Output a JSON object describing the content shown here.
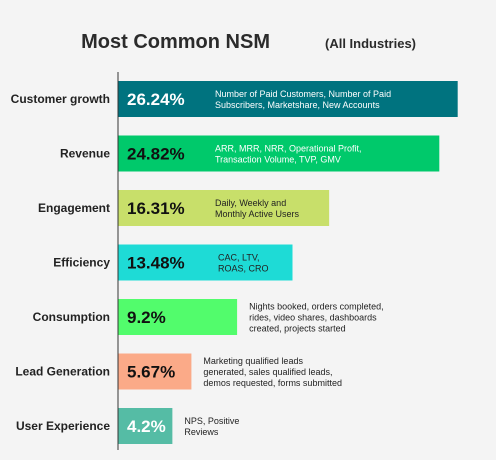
{
  "chart_data": {
    "type": "bar",
    "orientation": "horizontal",
    "title": "Most Common NSM",
    "subtitle": "(All Industries)",
    "xlabel": "",
    "ylabel": "",
    "xlim": [
      0,
      27.5
    ],
    "grid": false,
    "legend": "none",
    "categories": [
      "Customer growth",
      "Revenue",
      "Engagement",
      "Efficiency",
      "Consumption",
      "Lead Generation",
      "User Experience"
    ],
    "values": [
      26.24,
      24.82,
      16.31,
      13.48,
      9.2,
      5.67,
      4.2
    ],
    "value_labels": [
      "26.24%",
      "24.82%",
      "16.31%",
      "13.48%",
      "9.2%",
      "5.67%",
      "4.2%"
    ],
    "colors": [
      "#00737f",
      "#00c96b",
      "#c8df6a",
      "#1edbd6",
      "#52fc6c",
      "#fbaa88",
      "#55bca5"
    ],
    "value_label_colors": [
      "#ffffff",
      "#111111",
      "#111111",
      "#111111",
      "#111111",
      "#111111",
      "#ffffff"
    ],
    "annotations": [
      [
        "Number of Paid Customers, Number of Paid",
        "Subscribers, Marketshare, New Accounts"
      ],
      [
        "ARR, MRR, NRR,  Operational Profit,",
        "Transaction Volume, TVP, GMV"
      ],
      [
        "Daily, Weekly and",
        "Monthly Active Users"
      ],
      [
        "CAC, LTV,",
        "ROAS, CRO"
      ],
      [
        "Nights booked, orders completed,",
        "rides, video shares, dashboards",
        "created, projects started"
      ],
      [
        "Marketing qualified leads",
        "generated, sales qualified leads,",
        "demos requested, forms submitted"
      ],
      [
        "NPS, Positive",
        "Reviews"
      ]
    ],
    "annotation_colors": [
      "#ffffff",
      "#ffffff",
      "#222222",
      "#222222",
      "#222222",
      "#222222",
      "#222222"
    ]
  }
}
